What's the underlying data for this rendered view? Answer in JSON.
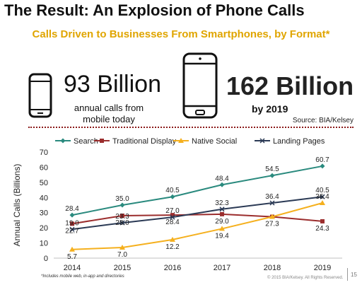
{
  "header": {
    "title": "The Result: An Explosion of Phone Calls",
    "subtitle": "Calls Driven to Businesses From Smartphones, by Format*"
  },
  "stats": {
    "today_value": "93 Billion",
    "today_caption": "annual calls from mobile today",
    "future_value": "162 Billion",
    "future_caption": "by 2019",
    "source": "Source: BIA/Kelsey"
  },
  "icons": {
    "left_phone": "smartphone-icon",
    "right_phone": "smartphone-icon"
  },
  "footer": {
    "footnote": "*Includes mobile web, in-app and directories",
    "copyright": "© 2015 BIA/Kelsey. All Rights Reserved.",
    "page": "15"
  },
  "chart_data": {
    "type": "line",
    "x": [
      "2014",
      "2015",
      "2016",
      "2017",
      "2018",
      "2019"
    ],
    "ylabel": "Annual Calls (Billions)",
    "ylim": [
      0,
      70
    ],
    "yticks": [
      0,
      10,
      20,
      30,
      40,
      50,
      60,
      70
    ],
    "grid": false,
    "legend": "top",
    "series": [
      {
        "name": "Search",
        "color": "#2a8a7e",
        "marker": "diamond",
        "values": [
          28.4,
          35.0,
          40.5,
          48.4,
          54.5,
          60.7
        ]
      },
      {
        "name": "Traditional Display",
        "color": "#9b2d2d",
        "marker": "square",
        "values": [
          22.7,
          28.0,
          28.4,
          29.0,
          27.3,
          24.3
        ]
      },
      {
        "name": "Native Social",
        "color": "#f5b01e",
        "marker": "triangle",
        "values": [
          5.7,
          7.0,
          12.2,
          19.4,
          27.3,
          36.4
        ]
      },
      {
        "name": "Landing Pages",
        "color": "#2b3a55",
        "marker": "x",
        "values": [
          19.0,
          23.3,
          27.0,
          32.3,
          36.4,
          40.5
        ]
      }
    ],
    "data_labels": [
      {
        "text": "28.4",
        "series": 0,
        "i": 0,
        "pos": "above"
      },
      {
        "text": "35.0",
        "series": 0,
        "i": 1,
        "pos": "above"
      },
      {
        "text": "40.5",
        "series": 0,
        "i": 2,
        "pos": "above"
      },
      {
        "text": "48.4",
        "series": 0,
        "i": 3,
        "pos": "above"
      },
      {
        "text": "54.5",
        "series": 0,
        "i": 4,
        "pos": "above"
      },
      {
        "text": "60.7",
        "series": 0,
        "i": 5,
        "pos": "above"
      },
      {
        "text": "19.0",
        "series": 3,
        "i": 0,
        "pos": "above"
      },
      {
        "text": "23.3",
        "series": 3,
        "i": 1,
        "pos": "above"
      },
      {
        "text": "27.0",
        "series": 3,
        "i": 2,
        "pos": "above"
      },
      {
        "text": "32.3",
        "series": 3,
        "i": 3,
        "pos": "above"
      },
      {
        "text": "36.4",
        "series": 3,
        "i": 4,
        "pos": "above"
      },
      {
        "text": "40.5",
        "series": 3,
        "i": 5,
        "pos": "above"
      },
      {
        "text": "22.7",
        "series": 1,
        "i": 0,
        "pos": "below"
      },
      {
        "text": "28.0",
        "series": 1,
        "i": 1,
        "pos": "below"
      },
      {
        "text": "28.4",
        "series": 1,
        "i": 2,
        "pos": "below"
      },
      {
        "text": "29.0",
        "series": 1,
        "i": 3,
        "pos": "below"
      },
      {
        "text": "27.3",
        "series": 1,
        "i": 4,
        "pos": "below"
      },
      {
        "text": "36.4",
        "series": 2,
        "i": 5,
        "pos": "above"
      },
      {
        "text": "24.3",
        "series": 1,
        "i": 5,
        "pos": "below"
      },
      {
        "text": "5.7",
        "series": 2,
        "i": 0,
        "pos": "below"
      },
      {
        "text": "7.0",
        "series": 2,
        "i": 1,
        "pos": "below"
      },
      {
        "text": "12.2",
        "series": 2,
        "i": 2,
        "pos": "below"
      },
      {
        "text": "19.4",
        "series": 2,
        "i": 3,
        "pos": "below"
      }
    ]
  }
}
